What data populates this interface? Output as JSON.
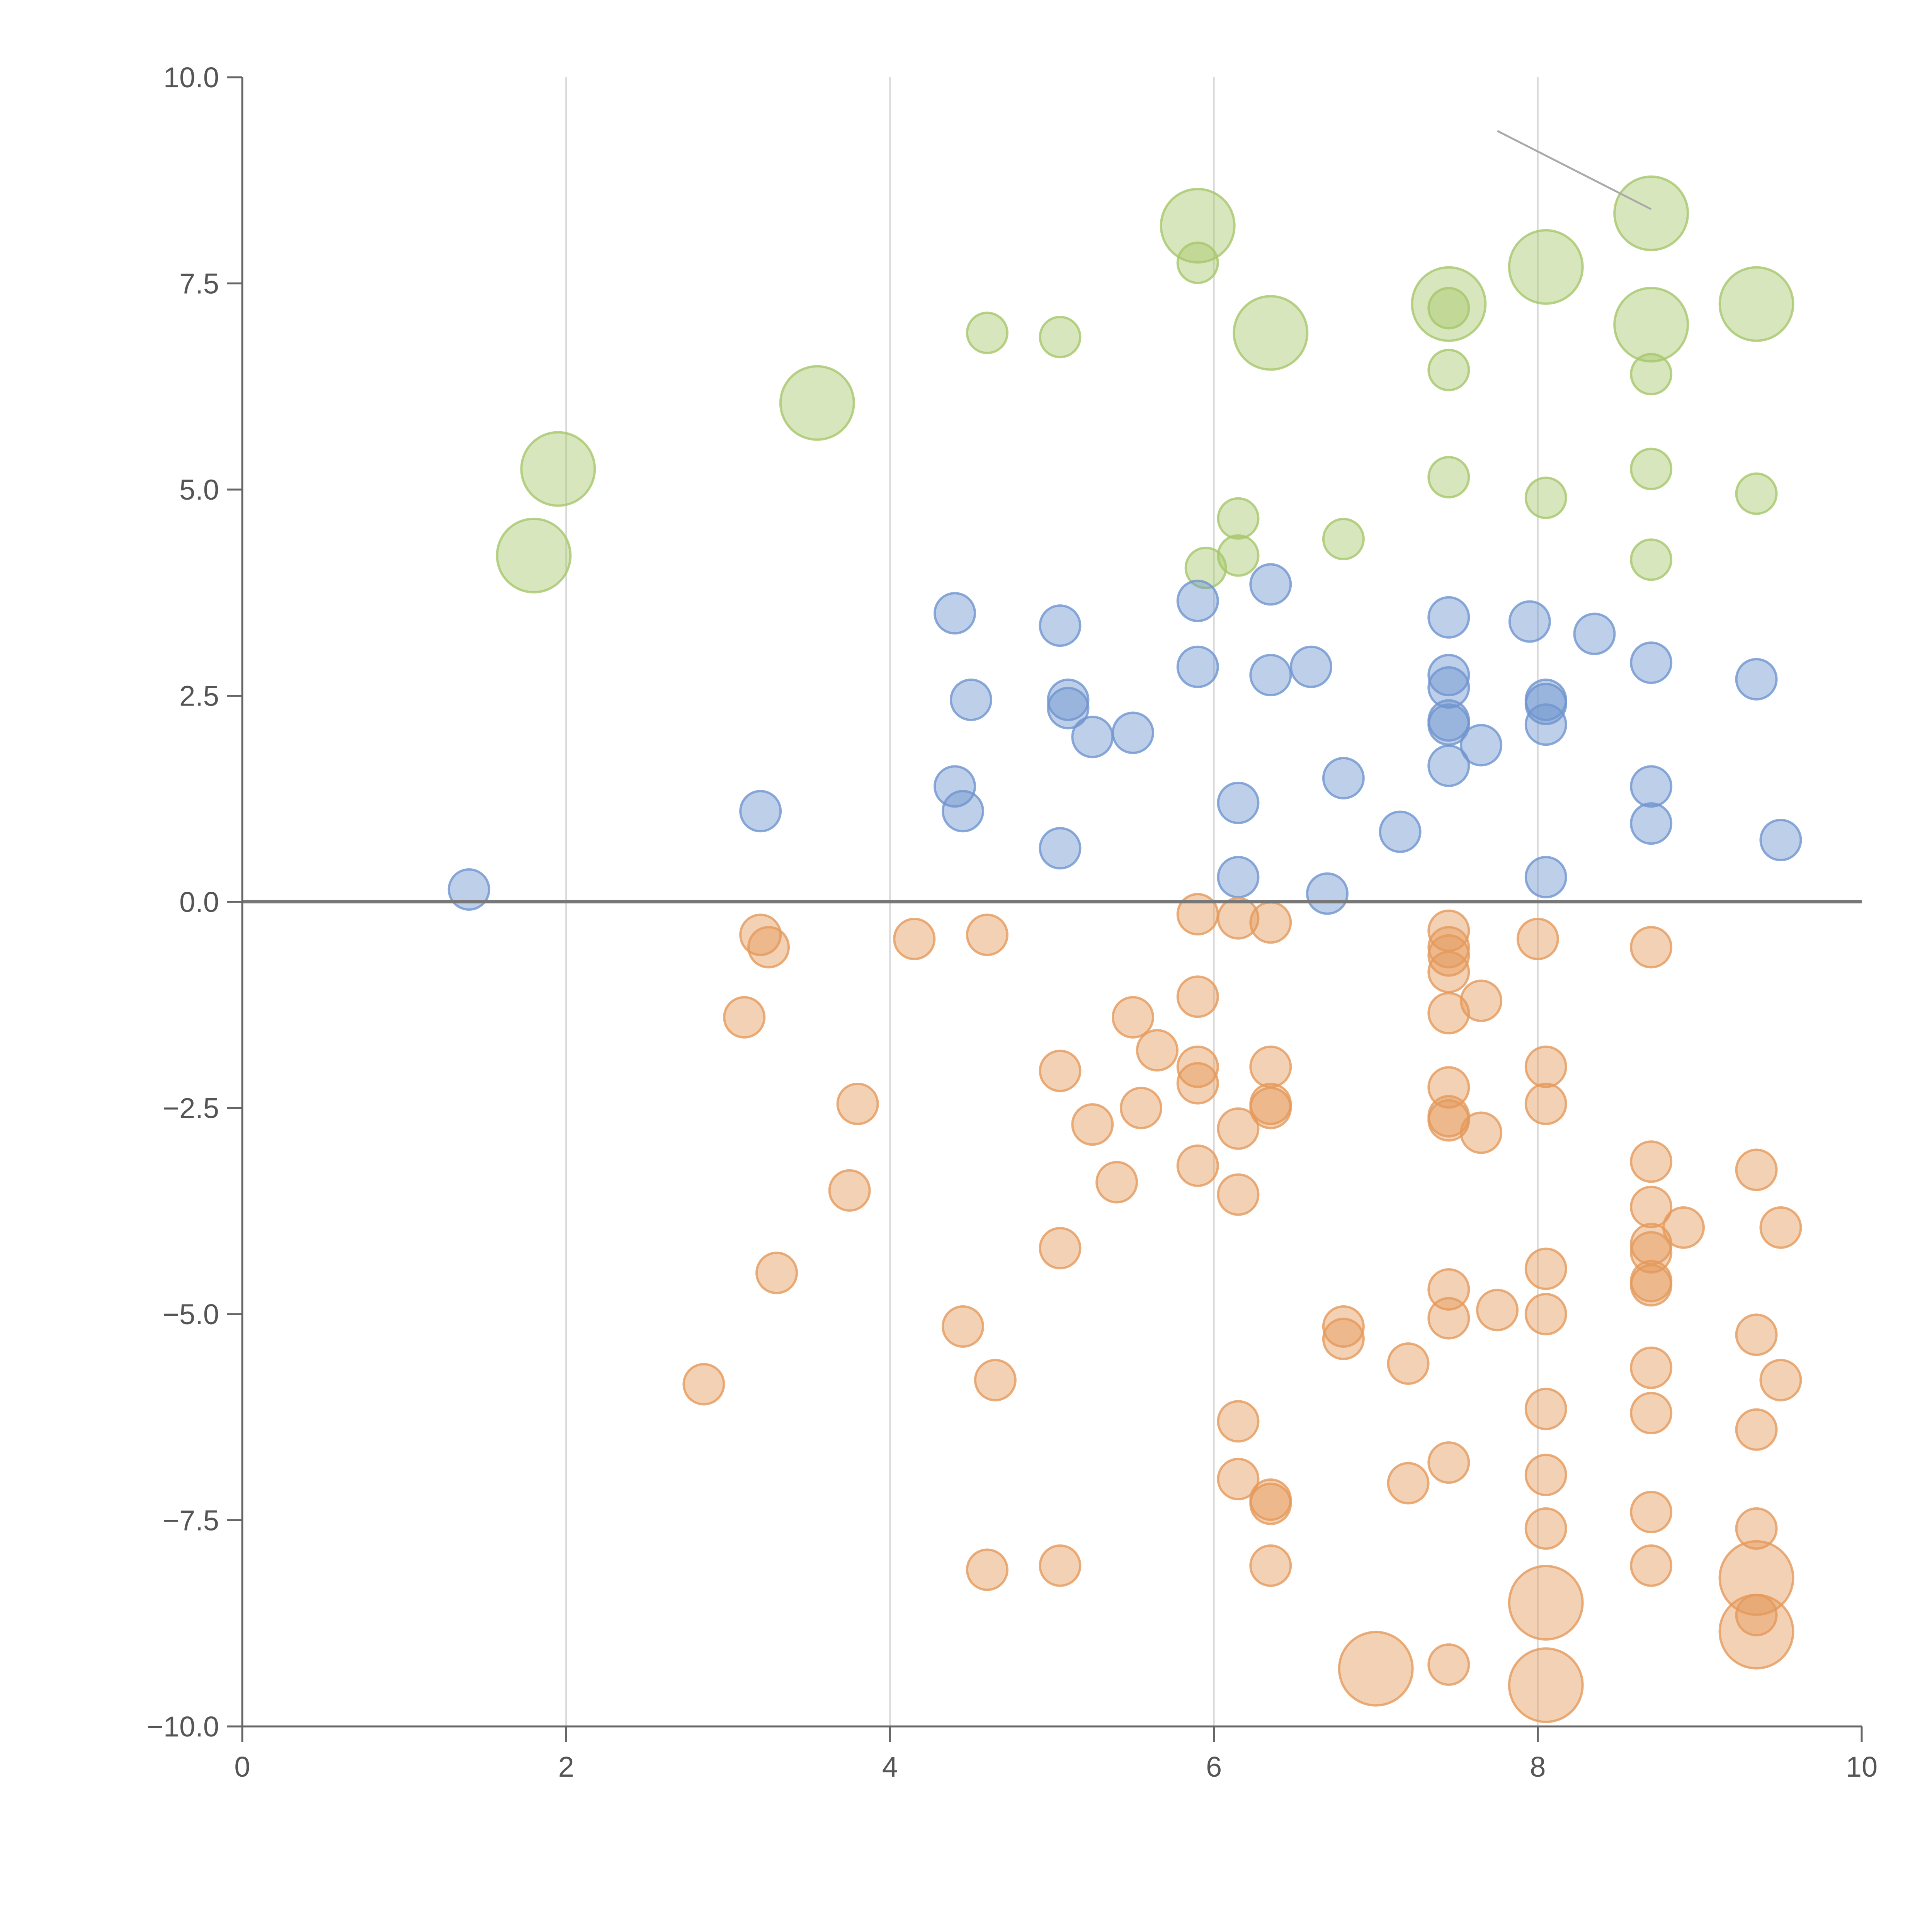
{
  "chart_data": {
    "type": "scatter",
    "title": "",
    "xlabel": "",
    "ylabel": "",
    "xlim": [
      0,
      10
    ],
    "ylim": [
      -10,
      10
    ],
    "x_ticks": [
      "0",
      "2",
      "4",
      "6",
      "8",
      "10"
    ],
    "y_ticks": [
      "−10.0",
      "−7.5",
      "−5.0",
      "−2.5",
      "0.0",
      "2.5",
      "5.0",
      "7.5",
      "10.0"
    ],
    "x_tick_values": [
      0,
      2,
      4,
      6,
      8,
      10
    ],
    "y_tick_values": [
      -10,
      -7.5,
      -5,
      -2.5,
      0,
      2.5,
      5,
      7.5,
      10
    ],
    "vertical_gridlines": [
      2,
      4,
      6,
      8
    ],
    "zero_line": 0,
    "colors": {
      "green": "#a6c76b",
      "blue": "#6f95cf",
      "orange": "#e59a5b",
      "axis": "#666666",
      "grid": "#d9d9d9"
    },
    "series": [
      {
        "name": "green",
        "color": "#a6c76b",
        "points": [
          {
            "x": 1.8,
            "y": 4.2,
            "s": 1
          },
          {
            "x": 1.95,
            "y": 5.25,
            "s": 1
          },
          {
            "x": 3.55,
            "y": 6.05,
            "s": 1
          },
          {
            "x": 4.6,
            "y": 6.9,
            "s": 0
          },
          {
            "x": 5.05,
            "y": 6.85,
            "s": 0
          },
          {
            "x": 5.9,
            "y": 8.2,
            "s": 1
          },
          {
            "x": 5.9,
            "y": 7.75,
            "s": 0
          },
          {
            "x": 6.35,
            "y": 6.9,
            "s": 1
          },
          {
            "x": 5.95,
            "y": 4.05,
            "s": 0
          },
          {
            "x": 6.15,
            "y": 4.65,
            "s": 0
          },
          {
            "x": 6.15,
            "y": 4.2,
            "s": 0
          },
          {
            "x": 6.8,
            "y": 4.4,
            "s": 0
          },
          {
            "x": 7.45,
            "y": 7.25,
            "s": 1
          },
          {
            "x": 7.45,
            "y": 7.2,
            "s": 0
          },
          {
            "x": 7.45,
            "y": 6.45,
            "s": 0
          },
          {
            "x": 7.45,
            "y": 5.15,
            "s": 0
          },
          {
            "x": 8.05,
            "y": 7.7,
            "s": 1
          },
          {
            "x": 8.05,
            "y": 4.9,
            "s": 0
          },
          {
            "x": 8.7,
            "y": 8.35,
            "s": 1
          },
          {
            "x": 8.7,
            "y": 7.0,
            "s": 1
          },
          {
            "x": 8.7,
            "y": 6.4,
            "s": 0
          },
          {
            "x": 8.7,
            "y": 5.25,
            "s": 0
          },
          {
            "x": 8.7,
            "y": 4.15,
            "s": 0
          },
          {
            "x": 9.35,
            "y": 7.25,
            "s": 1
          },
          {
            "x": 9.35,
            "y": 4.95,
            "s": 0
          }
        ]
      },
      {
        "name": "blue",
        "color": "#6f95cf",
        "points": [
          {
            "x": 1.4,
            "y": 0.15,
            "s": 0
          },
          {
            "x": 3.2,
            "y": 1.1,
            "s": 0
          },
          {
            "x": 4.4,
            "y": 3.5,
            "s": 0
          },
          {
            "x": 4.4,
            "y": 1.4,
            "s": 0
          },
          {
            "x": 4.45,
            "y": 1.1,
            "s": 0
          },
          {
            "x": 4.5,
            "y": 2.45,
            "s": 0
          },
          {
            "x": 5.05,
            "y": 3.35,
            "s": 0
          },
          {
            "x": 5.1,
            "y": 2.45,
            "s": 0
          },
          {
            "x": 5.1,
            "y": 2.35,
            "s": 0
          },
          {
            "x": 5.05,
            "y": 0.65,
            "s": 0
          },
          {
            "x": 5.25,
            "y": 2.0,
            "s": 0
          },
          {
            "x": 5.5,
            "y": 2.05,
            "s": 0
          },
          {
            "x": 5.9,
            "y": 3.65,
            "s": 0
          },
          {
            "x": 5.9,
            "y": 2.85,
            "s": 0
          },
          {
            "x": 6.35,
            "y": 3.85,
            "s": 0
          },
          {
            "x": 6.35,
            "y": 2.75,
            "s": 0
          },
          {
            "x": 6.6,
            "y": 2.85,
            "s": 0
          },
          {
            "x": 6.15,
            "y": 1.2,
            "s": 0
          },
          {
            "x": 6.15,
            "y": 0.3,
            "s": 0
          },
          {
            "x": 6.8,
            "y": 1.5,
            "s": 0
          },
          {
            "x": 6.7,
            "y": 0.1,
            "s": 0
          },
          {
            "x": 7.15,
            "y": 0.85,
            "s": 0
          },
          {
            "x": 7.45,
            "y": 3.45,
            "s": 0
          },
          {
            "x": 7.45,
            "y": 2.75,
            "s": 0
          },
          {
            "x": 7.45,
            "y": 2.6,
            "s": 0
          },
          {
            "x": 7.45,
            "y": 2.2,
            "s": 0
          },
          {
            "x": 7.45,
            "y": 2.15,
            "s": 0
          },
          {
            "x": 7.45,
            "y": 1.65,
            "s": 0
          },
          {
            "x": 7.65,
            "y": 1.9,
            "s": 0
          },
          {
            "x": 7.95,
            "y": 3.4,
            "s": 0
          },
          {
            "x": 8.05,
            "y": 2.45,
            "s": 0
          },
          {
            "x": 8.05,
            "y": 2.4,
            "s": 0
          },
          {
            "x": 8.05,
            "y": 2.15,
            "s": 0
          },
          {
            "x": 8.05,
            "y": 0.3,
            "s": 0
          },
          {
            "x": 8.35,
            "y": 3.25,
            "s": 0
          },
          {
            "x": 8.7,
            "y": 2.9,
            "s": 0
          },
          {
            "x": 8.7,
            "y": 1.4,
            "s": 0
          },
          {
            "x": 8.7,
            "y": 0.95,
            "s": 0
          },
          {
            "x": 9.35,
            "y": 2.7,
            "s": 0
          },
          {
            "x": 9.5,
            "y": 0.75,
            "s": 0
          }
        ]
      },
      {
        "name": "orange",
        "color": "#e59a5b",
        "points": [
          {
            "x": 2.85,
            "y": -5.85,
            "s": 0
          },
          {
            "x": 3.1,
            "y": -1.4,
            "s": 0
          },
          {
            "x": 3.2,
            "y": -0.4,
            "s": 0
          },
          {
            "x": 3.25,
            "y": -0.55,
            "s": 0
          },
          {
            "x": 3.3,
            "y": -4.5,
            "s": 0
          },
          {
            "x": 3.75,
            "y": -3.5,
            "s": 0
          },
          {
            "x": 3.8,
            "y": -2.45,
            "s": 0
          },
          {
            "x": 4.15,
            "y": -0.45,
            "s": 0
          },
          {
            "x": 4.45,
            "y": -5.15,
            "s": 0
          },
          {
            "x": 4.6,
            "y": -0.4,
            "s": 0
          },
          {
            "x": 4.65,
            "y": -5.8,
            "s": 0
          },
          {
            "x": 4.6,
            "y": -8.1,
            "s": 0
          },
          {
            "x": 5.05,
            "y": -2.05,
            "s": 0
          },
          {
            "x": 5.05,
            "y": -4.2,
            "s": 0
          },
          {
            "x": 5.05,
            "y": -8.05,
            "s": 0
          },
          {
            "x": 5.25,
            "y": -2.7,
            "s": 0
          },
          {
            "x": 5.4,
            "y": -3.4,
            "s": 0
          },
          {
            "x": 5.5,
            "y": -1.4,
            "s": 0
          },
          {
            "x": 5.55,
            "y": -2.5,
            "s": 0
          },
          {
            "x": 5.65,
            "y": -1.8,
            "s": 0
          },
          {
            "x": 5.9,
            "y": -0.15,
            "s": 0
          },
          {
            "x": 5.9,
            "y": -1.15,
            "s": 0
          },
          {
            "x": 5.9,
            "y": -2.0,
            "s": 0
          },
          {
            "x": 5.9,
            "y": -2.2,
            "s": 0
          },
          {
            "x": 5.9,
            "y": -3.2,
            "s": 0
          },
          {
            "x": 6.15,
            "y": -0.2,
            "s": 0
          },
          {
            "x": 6.15,
            "y": -2.75,
            "s": 0
          },
          {
            "x": 6.15,
            "y": -3.55,
            "s": 0
          },
          {
            "x": 6.15,
            "y": -6.3,
            "s": 0
          },
          {
            "x": 6.15,
            "y": -7.0,
            "s": 0
          },
          {
            "x": 6.35,
            "y": -0.25,
            "s": 0
          },
          {
            "x": 6.35,
            "y": -2.0,
            "s": 0
          },
          {
            "x": 6.35,
            "y": -2.45,
            "s": 0
          },
          {
            "x": 6.35,
            "y": -2.5,
            "s": 0
          },
          {
            "x": 6.35,
            "y": -7.25,
            "s": 0
          },
          {
            "x": 6.35,
            "y": -7.3,
            "s": 0
          },
          {
            "x": 6.35,
            "y": -8.05,
            "s": 0
          },
          {
            "x": 6.8,
            "y": -5.15,
            "s": 0
          },
          {
            "x": 6.8,
            "y": -5.3,
            "s": 0
          },
          {
            "x": 7.0,
            "y": -9.3,
            "s": 1
          },
          {
            "x": 7.2,
            "y": -5.6,
            "s": 0
          },
          {
            "x": 7.2,
            "y": -7.05,
            "s": 0
          },
          {
            "x": 7.45,
            "y": -0.35,
            "s": 0
          },
          {
            "x": 7.45,
            "y": -0.55,
            "s": 0
          },
          {
            "x": 7.45,
            "y": -0.65,
            "s": 0
          },
          {
            "x": 7.45,
            "y": -0.85,
            "s": 0
          },
          {
            "x": 7.45,
            "y": -1.35,
            "s": 0
          },
          {
            "x": 7.45,
            "y": -2.25,
            "s": 0
          },
          {
            "x": 7.45,
            "y": -2.6,
            "s": 0
          },
          {
            "x": 7.45,
            "y": -2.65,
            "s": 0
          },
          {
            "x": 7.45,
            "y": -4.7,
            "s": 0
          },
          {
            "x": 7.45,
            "y": -5.05,
            "s": 0
          },
          {
            "x": 7.45,
            "y": -6.8,
            "s": 0
          },
          {
            "x": 7.45,
            "y": -9.25,
            "s": 0
          },
          {
            "x": 7.65,
            "y": -1.2,
            "s": 0
          },
          {
            "x": 7.65,
            "y": -2.8,
            "s": 0
          },
          {
            "x": 7.75,
            "y": -4.95,
            "s": 0
          },
          {
            "x": 8.0,
            "y": -0.45,
            "s": 0
          },
          {
            "x": 8.05,
            "y": -2.0,
            "s": 0
          },
          {
            "x": 8.05,
            "y": -2.45,
            "s": 0
          },
          {
            "x": 8.05,
            "y": -4.45,
            "s": 0
          },
          {
            "x": 8.05,
            "y": -5.0,
            "s": 0
          },
          {
            "x": 8.05,
            "y": -6.15,
            "s": 0
          },
          {
            "x": 8.05,
            "y": -6.95,
            "s": 0
          },
          {
            "x": 8.05,
            "y": -7.6,
            "s": 0
          },
          {
            "x": 8.05,
            "y": -8.5,
            "s": 1
          },
          {
            "x": 8.05,
            "y": -9.5,
            "s": 1
          },
          {
            "x": 8.7,
            "y": -0.55,
            "s": 0
          },
          {
            "x": 8.7,
            "y": -3.15,
            "s": 0
          },
          {
            "x": 8.7,
            "y": -3.7,
            "s": 0
          },
          {
            "x": 8.7,
            "y": -4.15,
            "s": 0
          },
          {
            "x": 8.7,
            "y": -4.25,
            "s": 0
          },
          {
            "x": 8.7,
            "y": -4.6,
            "s": 0
          },
          {
            "x": 8.7,
            "y": -4.65,
            "s": 0
          },
          {
            "x": 8.7,
            "y": -5.65,
            "s": 0
          },
          {
            "x": 8.7,
            "y": -6.2,
            "s": 0
          },
          {
            "x": 8.7,
            "y": -7.4,
            "s": 0
          },
          {
            "x": 8.7,
            "y": -8.05,
            "s": 0
          },
          {
            "x": 8.9,
            "y": -3.95,
            "s": 0
          },
          {
            "x": 9.35,
            "y": -3.25,
            "s": 0
          },
          {
            "x": 9.35,
            "y": -5.25,
            "s": 0
          },
          {
            "x": 9.35,
            "y": -6.4,
            "s": 0
          },
          {
            "x": 9.35,
            "y": -7.6,
            "s": 0
          },
          {
            "x": 9.35,
            "y": -8.2,
            "s": 1
          },
          {
            "x": 9.35,
            "y": -8.65,
            "s": 0
          },
          {
            "x": 9.35,
            "y": -8.85,
            "s": 1
          },
          {
            "x": 9.5,
            "y": -3.95,
            "s": 0
          },
          {
            "x": 9.5,
            "y": -5.8,
            "s": 0
          }
        ]
      }
    ]
  }
}
